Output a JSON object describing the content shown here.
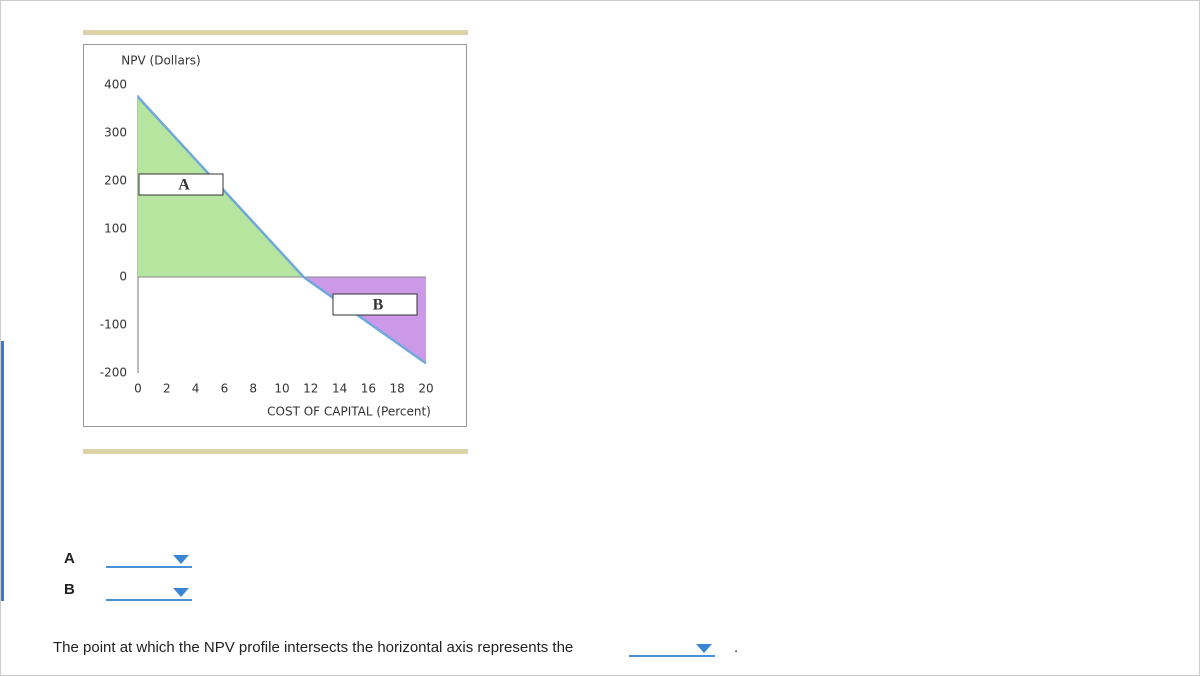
{
  "chart_data": {
    "type": "line",
    "title": "NPV (Dollars)",
    "x_label": "COST OF CAPITAL (Percent)",
    "x": [
      0,
      11.5,
      20
    ],
    "series": [
      {
        "values": [
          375,
          0,
          -180
        ],
        "color": "#6fa8dc"
      }
    ],
    "fill_colors": [
      "#b5e59e",
      "#cc99e8"
    ],
    "annotations": [
      {
        "text": "A"
      },
      {
        "text": "B"
      }
    ],
    "xlim": [
      0,
      20
    ],
    "xticks": [
      0,
      2,
      4,
      6,
      8,
      10,
      12,
      14,
      16,
      18,
      20
    ],
    "ylim": [
      -200,
      400
    ],
    "yticks": [
      -200,
      -100,
      0,
      100,
      200,
      300,
      400
    ]
  },
  "questions": [
    {
      "label": "A"
    },
    {
      "label": "B"
    }
  ],
  "sentence": {
    "text": "The point at which the NPV profile intersects the horizontal axis represents the",
    "end": "."
  }
}
